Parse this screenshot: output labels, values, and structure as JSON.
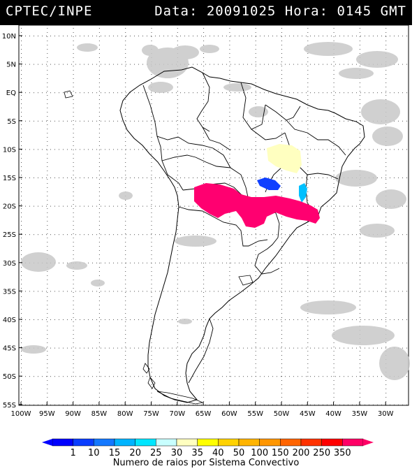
{
  "header": {
    "source": "CPTEC/INPE",
    "date_label": "Data:",
    "date_value": "20091025",
    "time_label": "Hora:",
    "time_value": "0145 GMT"
  },
  "map": {
    "lat_labels": [
      "10N",
      "5N",
      "EQ",
      "5S",
      "10S",
      "15S",
      "20S",
      "25S",
      "30S",
      "35S",
      "40S",
      "45S",
      "50S",
      "55S"
    ],
    "lon_labels": [
      "100W",
      "95W",
      "90W",
      "85W",
      "80W",
      "75W",
      "70W",
      "65W",
      "60W",
      "55W",
      "50W",
      "45W",
      "40W",
      "35W",
      "30W"
    ]
  },
  "legend": {
    "values": [
      "1",
      "10",
      "15",
      "20",
      "25",
      "30",
      "35",
      "40",
      "50",
      "100",
      "150",
      "200",
      "250",
      "350"
    ],
    "colors": [
      "#0000ff",
      "#0a3dff",
      "#1478ff",
      "#00b4ff",
      "#00e6ff",
      "#c8ffff",
      "#ffffc0",
      "#ffff00",
      "#ffd200",
      "#ffb400",
      "#ff9600",
      "#ff6400",
      "#ff3200",
      "#ff0000",
      "#ff0066"
    ],
    "caption": "Numero de raios por Sistema Convectivo"
  }
}
